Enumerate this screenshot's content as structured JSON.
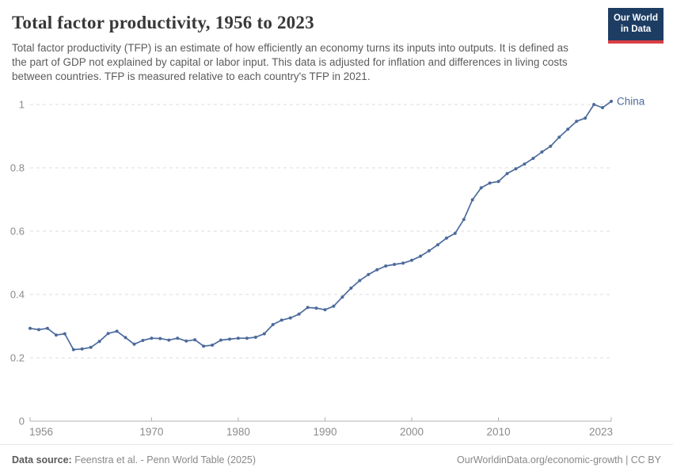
{
  "header": {
    "title": "Total factor productivity, 1956 to 2023",
    "subtitle": "Total factor productivity (TFP) is an estimate of how efficiently an economy turns its inputs into outputs. It is defined as the part of GDP not explained by capital or labor input. This data is adjusted for inflation and differences in living costs between countries. TFP is measured relative to each country's TFP in 2021.",
    "logo": {
      "line1": "Our World",
      "line2": "in Data"
    }
  },
  "chart_data": {
    "type": "line",
    "title": "Total factor productivity, 1956 to 2023",
    "xlabel": "",
    "ylabel": "",
    "xlim": [
      1956,
      2023
    ],
    "ylim": [
      0,
      1
    ],
    "x_ticks": [
      1956,
      1970,
      1980,
      1990,
      2000,
      2010,
      2023
    ],
    "y_ticks": [
      0,
      0.2,
      0.4,
      0.6,
      0.8,
      1
    ],
    "grid": "horizontal-dashed",
    "legend_position": "end-of-line-label",
    "series": [
      {
        "name": "China",
        "color": "#4c6a9c",
        "x": [
          1956,
          1957,
          1958,
          1959,
          1960,
          1961,
          1962,
          1963,
          1964,
          1965,
          1966,
          1967,
          1968,
          1969,
          1970,
          1971,
          1972,
          1973,
          1974,
          1975,
          1976,
          1977,
          1978,
          1979,
          1980,
          1981,
          1982,
          1983,
          1984,
          1985,
          1986,
          1987,
          1988,
          1989,
          1990,
          1991,
          1992,
          1993,
          1994,
          1995,
          1996,
          1997,
          1998,
          1999,
          2000,
          2001,
          2002,
          2003,
          2004,
          2005,
          2006,
          2007,
          2008,
          2009,
          2010,
          2011,
          2012,
          2013,
          2014,
          2015,
          2016,
          2017,
          2018,
          2019,
          2020,
          2021,
          2022,
          2023
        ],
        "values": [
          0.293,
          0.289,
          0.293,
          0.272,
          0.276,
          0.226,
          0.228,
          0.233,
          0.252,
          0.277,
          0.284,
          0.264,
          0.243,
          0.255,
          0.262,
          0.261,
          0.256,
          0.262,
          0.253,
          0.257,
          0.237,
          0.24,
          0.256,
          0.259,
          0.262,
          0.262,
          0.265,
          0.276,
          0.305,
          0.319,
          0.326,
          0.338,
          0.359,
          0.357,
          0.352,
          0.363,
          0.392,
          0.42,
          0.444,
          0.463,
          0.478,
          0.49,
          0.495,
          0.499,
          0.508,
          0.521,
          0.538,
          0.557,
          0.578,
          0.593,
          0.637,
          0.699,
          0.737,
          0.752,
          0.757,
          0.782,
          0.797,
          0.812,
          0.83,
          0.85,
          0.868,
          0.897,
          0.922,
          0.947,
          0.957,
          1.0,
          0.99,
          1.01
        ]
      }
    ]
  },
  "colors": {
    "accent": "#4c6a9c",
    "grid": "#dedede",
    "axis": "#b0b0b0",
    "tick_label": "#8b8b8b",
    "logo_bg": "#1d3d63",
    "logo_bar": "#dc3e43"
  },
  "footer": {
    "source_label": "Data source:",
    "source_text": "Feenstra et al. - Penn World Table (2025)",
    "right_text": "OurWorldinData.org/economic-growth | CC BY"
  }
}
